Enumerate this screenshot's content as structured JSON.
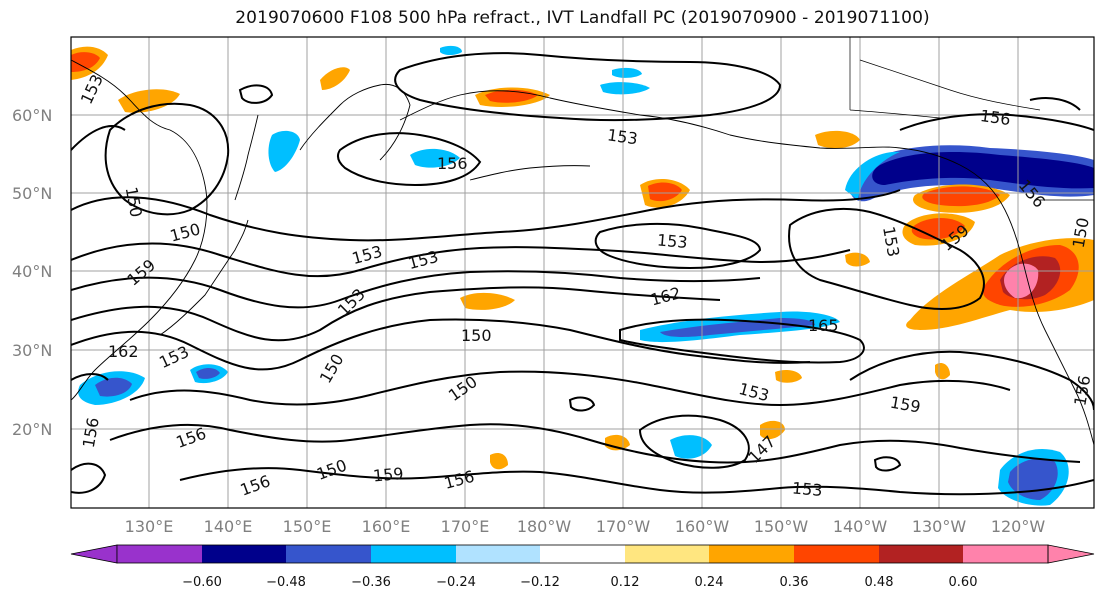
{
  "title": "2019070600 F108 500 hPa refract., IVT Landfall PC (2019070900 - 2019071100)",
  "lat_labels": [
    "60°N",
    "50°N",
    "40°N",
    "30°N",
    "20°N"
  ],
  "lon_labels": [
    "130°E",
    "140°E",
    "150°E",
    "160°E",
    "170°E",
    "180°W",
    "170°W",
    "160°W",
    "150°W",
    "140°W",
    "130°W",
    "120°W"
  ],
  "colorbar": {
    "ticks": [
      "−0.60",
      "−0.48",
      "−0.36",
      "−0.24",
      "−0.12",
      "0.12",
      "0.24",
      "0.36",
      "0.48",
      "0.60"
    ],
    "colors": [
      "#9932cc",
      "#00008b",
      "#3655cc",
      "#00bfff",
      "#b0e2ff",
      "#ffffff",
      "#ffe680",
      "#ffa500",
      "#ff4500",
      "#b22222",
      "#ff82ab"
    ]
  },
  "contour_labels": [
    "153",
    "156",
    "153",
    "156",
    "156",
    "150",
    "150",
    "153",
    "153",
    "153",
    "153",
    "159",
    "159",
    "153",
    "162",
    "165",
    "150",
    "162",
    "153",
    "150",
    "150",
    "150",
    "153",
    "159",
    "156",
    "156",
    "150",
    "147",
    "156",
    "159",
    "156",
    "156",
    "153"
  ],
  "colors": {
    "contour": "#000000",
    "grid": "#a0a0a0",
    "coast": "#000000",
    "label_gray": "#808080"
  }
}
